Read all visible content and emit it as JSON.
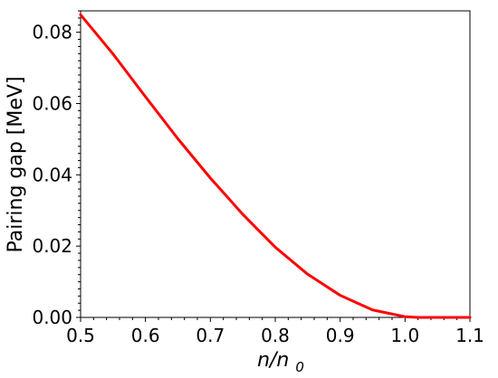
{
  "chart_data": {
    "type": "line",
    "title": "",
    "xlabel": "n/n0",
    "xlabel_parts": {
      "main": "n/n",
      "subscript": "0"
    },
    "ylabel": "Pairing gap [MeV]",
    "xlim": [
      0.5,
      1.1
    ],
    "ylim": [
      0.0,
      0.086
    ],
    "x_ticks": [
      0.5,
      0.6,
      0.7,
      0.8,
      0.9,
      1.0,
      1.1
    ],
    "x_tick_labels": [
      "0.5",
      "0.6",
      "0.7",
      "0.8",
      "0.9",
      "1.0",
      "1.1"
    ],
    "y_ticks": [
      0.0,
      0.02,
      0.04,
      0.06,
      0.08
    ],
    "y_tick_labels": [
      "0.00",
      "0.02",
      "0.04",
      "0.06",
      "0.08"
    ],
    "grid": false,
    "legend": "none",
    "series": [
      {
        "color": "#ff0000",
        "x": [
          0.5,
          0.55,
          0.6,
          0.65,
          0.7,
          0.75,
          0.8,
          0.85,
          0.9,
          0.95,
          1.0,
          1.02,
          1.05,
          1.1
        ],
        "y": [
          0.0849,
          0.0739,
          0.0619,
          0.0501,
          0.0391,
          0.0289,
          0.0197,
          0.0121,
          0.0062,
          0.0021,
          0.0002,
          0.0,
          0.0,
          0.0
        ]
      }
    ]
  }
}
